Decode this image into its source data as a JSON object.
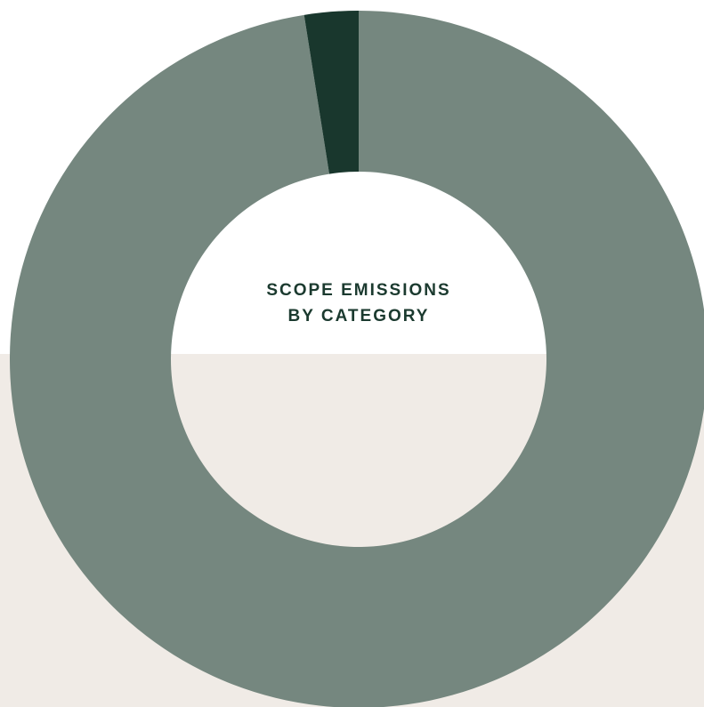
{
  "chart_data": {
    "type": "pie",
    "donut": true,
    "title_lines": [
      "SCOPE EMISSIONS",
      "BY CATEGORY"
    ],
    "slices": [
      {
        "value": 97.5,
        "color": "#75877f"
      },
      {
        "value": 2.5,
        "color": "#19372d"
      }
    ]
  },
  "colors": {
    "title": "#1b3a2f",
    "background_top": "#ffffff",
    "background_bottom": "#f0ebe6"
  }
}
